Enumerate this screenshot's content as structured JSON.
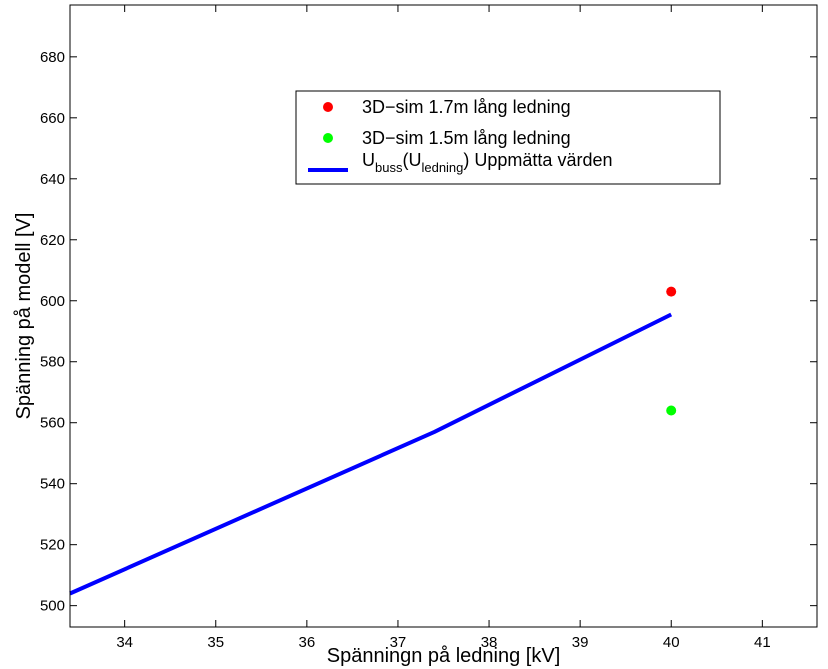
{
  "chart_data": {
    "type": "line",
    "title": "",
    "xlabel": "Spänningn på ledning [kV]",
    "ylabel": "Spänning på modell [V]",
    "xlim": [
      33.4,
      41.6
    ],
    "ylim": [
      493,
      697
    ],
    "xticks": [
      34,
      35,
      36,
      37,
      38,
      39,
      40,
      41
    ],
    "yticks": [
      500,
      520,
      540,
      560,
      580,
      600,
      620,
      640,
      660,
      680
    ],
    "grid": false,
    "legend_position": "top-center",
    "series": [
      {
        "kind": "scatter",
        "color": "#ff0000",
        "label": "3D−sim 1.7m lång ledning",
        "x": [
          40
        ],
        "y": [
          603
        ]
      },
      {
        "kind": "scatter",
        "color": "#00ff00",
        "label": "3D−sim 1.5m lång ledning",
        "x": [
          40
        ],
        "y": [
          564
        ]
      },
      {
        "kind": "line",
        "color": "#0000ff",
        "label": {
          "base1": "U",
          "sub1": "buss",
          "mid": "(U",
          "sub2": "ledning",
          "tail": ") Uppmätta värden"
        },
        "x": [
          33.4,
          37.4,
          40.0
        ],
        "y": [
          504,
          557,
          595.5
        ]
      }
    ]
  }
}
